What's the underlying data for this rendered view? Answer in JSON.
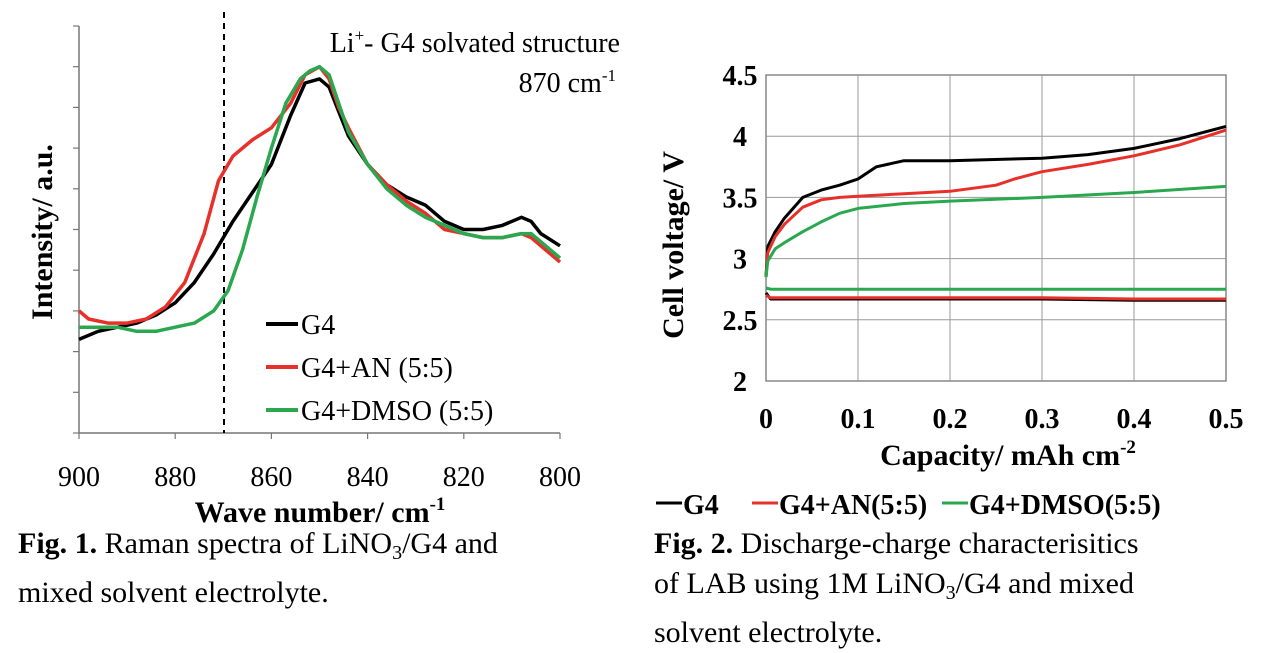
{
  "chart_data": [
    {
      "type": "line",
      "title": "",
      "xlabel": "Wave number/ cm",
      "xlabel_sup": "-1",
      "ylabel": "Intensity/ a.u.",
      "xlim": [
        900,
        800
      ],
      "x_reversed": true,
      "ylim": [
        0,
        1
      ],
      "y_ticks_labeled": false,
      "x_ticks": [
        "900",
        "880",
        "860",
        "840",
        "820",
        "800"
      ],
      "grid": false,
      "legend_position": "lower-center",
      "annotation": {
        "line1_main": "Li",
        "line1_sup": "+",
        "line1_rest": "- G4 solvated structure",
        "line2_main": "870 cm",
        "line2_sup": "-1",
        "x": 870,
        "style": "dashed vertical line"
      },
      "series": [
        {
          "name": "G4",
          "color": "#000000",
          "x": [
            900,
            896,
            892,
            888,
            884,
            880,
            876,
            872,
            868,
            864,
            860,
            856,
            853,
            850,
            848,
            846,
            844,
            840,
            836,
            832,
            828,
            824,
            820,
            816,
            812,
            808,
            806,
            804,
            800
          ],
          "y": [
            0.23,
            0.25,
            0.26,
            0.27,
            0.29,
            0.32,
            0.37,
            0.44,
            0.52,
            0.59,
            0.66,
            0.78,
            0.86,
            0.87,
            0.85,
            0.79,
            0.73,
            0.66,
            0.61,
            0.58,
            0.56,
            0.52,
            0.5,
            0.5,
            0.51,
            0.53,
            0.52,
            0.49,
            0.46
          ]
        },
        {
          "name": "G4+AN (5:5)",
          "color": "#e8302a",
          "x": [
            900,
            898,
            894,
            890,
            886,
            882,
            878,
            874,
            871,
            868,
            864,
            860,
            856,
            853,
            850,
            848,
            846,
            844,
            840,
            836,
            832,
            828,
            824,
            820,
            816,
            812,
            808,
            806,
            804,
            800
          ],
          "y": [
            0.3,
            0.28,
            0.27,
            0.27,
            0.28,
            0.31,
            0.37,
            0.49,
            0.62,
            0.68,
            0.72,
            0.75,
            0.81,
            0.88,
            0.9,
            0.87,
            0.8,
            0.75,
            0.66,
            0.61,
            0.57,
            0.54,
            0.5,
            0.49,
            0.48,
            0.48,
            0.49,
            0.48,
            0.46,
            0.42
          ]
        },
        {
          "name": "G4+DMSO (5:5)",
          "color": "#2aa84f",
          "x": [
            900,
            896,
            892,
            888,
            884,
            880,
            876,
            872,
            869,
            866,
            863,
            860,
            857,
            854,
            852,
            850,
            848,
            846,
            844,
            840,
            836,
            832,
            828,
            824,
            820,
            816,
            812,
            808,
            806,
            804,
            800
          ],
          "y": [
            0.26,
            0.26,
            0.26,
            0.25,
            0.25,
            0.26,
            0.27,
            0.3,
            0.35,
            0.45,
            0.58,
            0.7,
            0.81,
            0.87,
            0.89,
            0.9,
            0.88,
            0.81,
            0.74,
            0.66,
            0.6,
            0.56,
            0.53,
            0.51,
            0.49,
            0.48,
            0.48,
            0.49,
            0.49,
            0.47,
            0.43
          ]
        }
      ]
    },
    {
      "type": "line",
      "title": "",
      "xlabel": "Capacity/ mAh cm",
      "xlabel_sup": "-2",
      "ylabel": "Cell voltage/ V",
      "xlim": [
        0,
        0.5
      ],
      "ylim": [
        2,
        4.5
      ],
      "x_ticks": [
        "0",
        "0.1",
        "0.2",
        "0.3",
        "0.4",
        "0.5"
      ],
      "y_ticks": [
        "2",
        "2.5",
        "3",
        "3.5",
        "4",
        "4.5"
      ],
      "grid": true,
      "legend_position": "bottom",
      "series": [
        {
          "name": "G4",
          "color": "#000000",
          "charge": {
            "x": [
              0,
              0.002,
              0.01,
              0.02,
              0.04,
              0.06,
              0.08,
              0.1,
              0.12,
              0.15,
              0.2,
              0.3,
              0.35,
              0.4,
              0.45,
              0.5
            ],
            "y": [
              2.85,
              3.1,
              3.22,
              3.33,
              3.5,
              3.56,
              3.6,
              3.65,
              3.75,
              3.8,
              3.8,
              3.82,
              3.85,
              3.9,
              3.98,
              4.08
            ]
          },
          "discharge": {
            "x": [
              0,
              0.005,
              0.1,
              0.2,
              0.3,
              0.4,
              0.5
            ],
            "y": [
              2.72,
              2.67,
              2.67,
              2.67,
              2.67,
              2.66,
              2.66
            ]
          }
        },
        {
          "name": "G4+AN(5:5)",
          "color": "#e8302a",
          "charge": {
            "x": [
              0,
              0.002,
              0.01,
              0.02,
              0.04,
              0.06,
              0.08,
              0.1,
              0.15,
              0.2,
              0.25,
              0.27,
              0.3,
              0.35,
              0.4,
              0.45,
              0.5
            ],
            "y": [
              2.85,
              3.05,
              3.18,
              3.28,
              3.42,
              3.48,
              3.5,
              3.51,
              3.53,
              3.55,
              3.6,
              3.65,
              3.71,
              3.77,
              3.84,
              3.93,
              4.05
            ]
          },
          "discharge": {
            "x": [
              0,
              0.005,
              0.1,
              0.2,
              0.3,
              0.4,
              0.5
            ],
            "y": [
              2.7,
              2.68,
              2.68,
              2.68,
              2.68,
              2.67,
              2.67
            ]
          }
        },
        {
          "name": "G4+DMSO(5:5)",
          "color": "#2aa84f",
          "charge": {
            "x": [
              0,
              0.002,
              0.01,
              0.02,
              0.04,
              0.06,
              0.08,
              0.1,
              0.15,
              0.2,
              0.3,
              0.4,
              0.5
            ],
            "y": [
              2.85,
              2.98,
              3.08,
              3.13,
              3.22,
              3.3,
              3.37,
              3.41,
              3.45,
              3.47,
              3.5,
              3.54,
              3.59
            ]
          },
          "discharge": {
            "x": [
              0,
              0.005,
              0.5
            ],
            "y": [
              2.76,
              2.75,
              2.75
            ]
          }
        }
      ]
    }
  ],
  "captions": {
    "fig1": {
      "label": "Fig. 1.",
      "text_a": " Raman spectra of LiNO",
      "text_sub": "3",
      "text_b": "/G4 and",
      "line2": "mixed solvent electrolyte."
    },
    "fig2": {
      "label": "Fig. 2.",
      "line1_rest": " Discharge-charge characterisitics",
      "line2_a": "of LAB using 1M LiNO",
      "line2_sub": "3",
      "line2_b": "/G4 and mixed",
      "line3": "solvent electrolyte."
    }
  }
}
